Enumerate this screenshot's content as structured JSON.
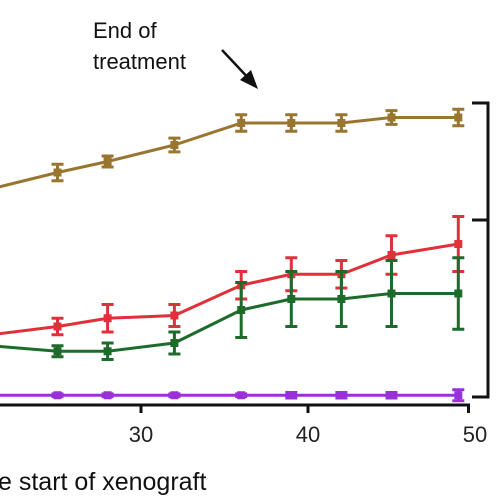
{
  "chart_data": {
    "type": "line",
    "xlabel": "e start of xenograft",
    "ylabel": "",
    "xlim": [
      21,
      49
    ],
    "x_ticks": [
      30,
      40,
      50
    ],
    "annotations": [
      {
        "text_lines": [
          "End of",
          "treatment"
        ],
        "points_to_x": 36
      }
    ],
    "grid": false,
    "series": [
      {
        "color": "#9a7530",
        "x": [
          21,
          25,
          28,
          32,
          36,
          39,
          42,
          45,
          49
        ],
        "y": [
          0.76,
          0.82,
          0.86,
          0.92,
          1.0,
          1.0,
          1.0,
          1.02,
          1.02
        ],
        "err": [
          0.02,
          0.03,
          0.02,
          0.025,
          0.03,
          0.03,
          0.03,
          0.025,
          0.03
        ]
      },
      {
        "color": "#e0303a",
        "x": [
          21,
          25,
          28,
          32,
          36,
          39,
          42,
          45,
          49
        ],
        "y": [
          0.23,
          0.26,
          0.29,
          0.3,
          0.41,
          0.45,
          0.45,
          0.52,
          0.56
        ],
        "err": [
          0.02,
          0.03,
          0.05,
          0.04,
          0.05,
          0.06,
          0.05,
          0.07,
          0.1
        ]
      },
      {
        "color": "#1d6b2a",
        "x": [
          21,
          25,
          28,
          32,
          36,
          39,
          42,
          45,
          49
        ],
        "y": [
          0.19,
          0.17,
          0.17,
          0.2,
          0.32,
          0.36,
          0.36,
          0.38,
          0.38
        ],
        "err": [
          0.01,
          0.02,
          0.03,
          0.04,
          0.1,
          0.1,
          0.1,
          0.12,
          0.13
        ]
      },
      {
        "color": "#9a30d8",
        "x": [
          21,
          25,
          28,
          32,
          36,
          39,
          42,
          45,
          49
        ],
        "y": [
          0.01,
          0.01,
          0.01,
          0.01,
          0.01,
          0.01,
          0.01,
          0.01,
          0.01
        ],
        "err": [
          0.005,
          0.005,
          0.005,
          0.005,
          0.005,
          0.01,
          0.01,
          0.01,
          0.02
        ]
      }
    ]
  }
}
